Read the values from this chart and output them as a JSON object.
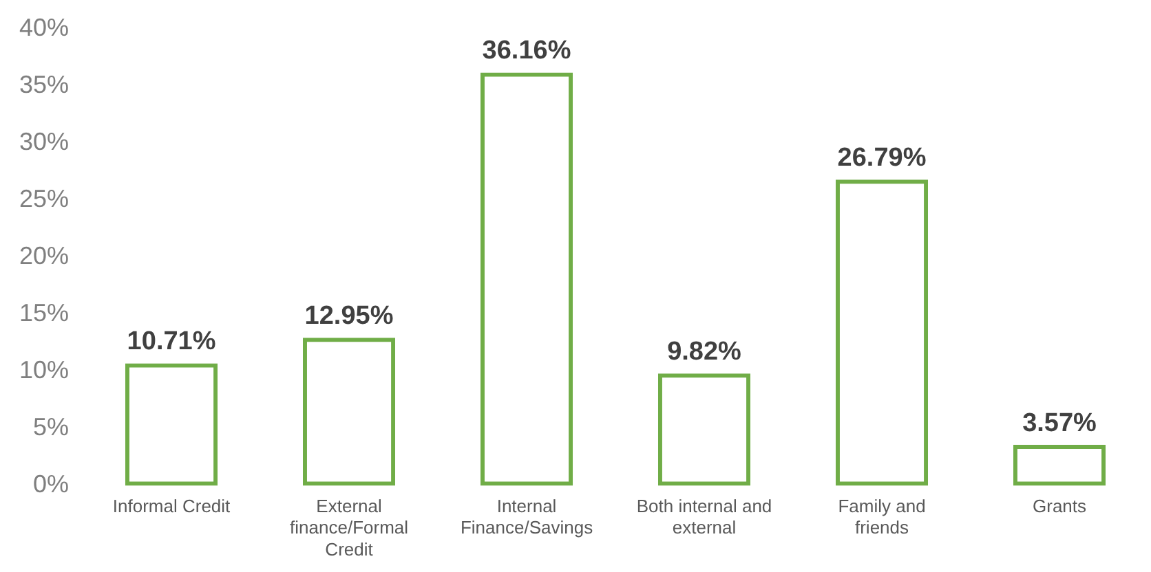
{
  "chart_data": {
    "type": "bar",
    "categories": [
      "Informal Credit",
      "External finance/Formal Credit",
      "Internal Finance/Savings",
      "Both internal and external",
      "Family and friends",
      "Grants"
    ],
    "values": [
      10.71,
      12.95,
      36.16,
      9.82,
      26.79,
      3.57
    ],
    "value_labels": [
      "10.71%",
      "12.95%",
      "36.16%",
      "9.82%",
      "26.79%",
      "3.57%"
    ],
    "color": "#70ad47",
    "ylim": [
      0,
      40
    ],
    "yticks": [
      {
        "value": 0,
        "label": "0%"
      },
      {
        "value": 5,
        "label": "5%"
      },
      {
        "value": 10,
        "label": "10%"
      },
      {
        "value": 15,
        "label": "15%"
      },
      {
        "value": 20,
        "label": "20%"
      },
      {
        "value": 25,
        "label": "25%"
      },
      {
        "value": 30,
        "label": "30%"
      },
      {
        "value": 35,
        "label": "35%"
      },
      {
        "value": 40,
        "label": "40%"
      }
    ],
    "grid": false,
    "legend": false
  }
}
